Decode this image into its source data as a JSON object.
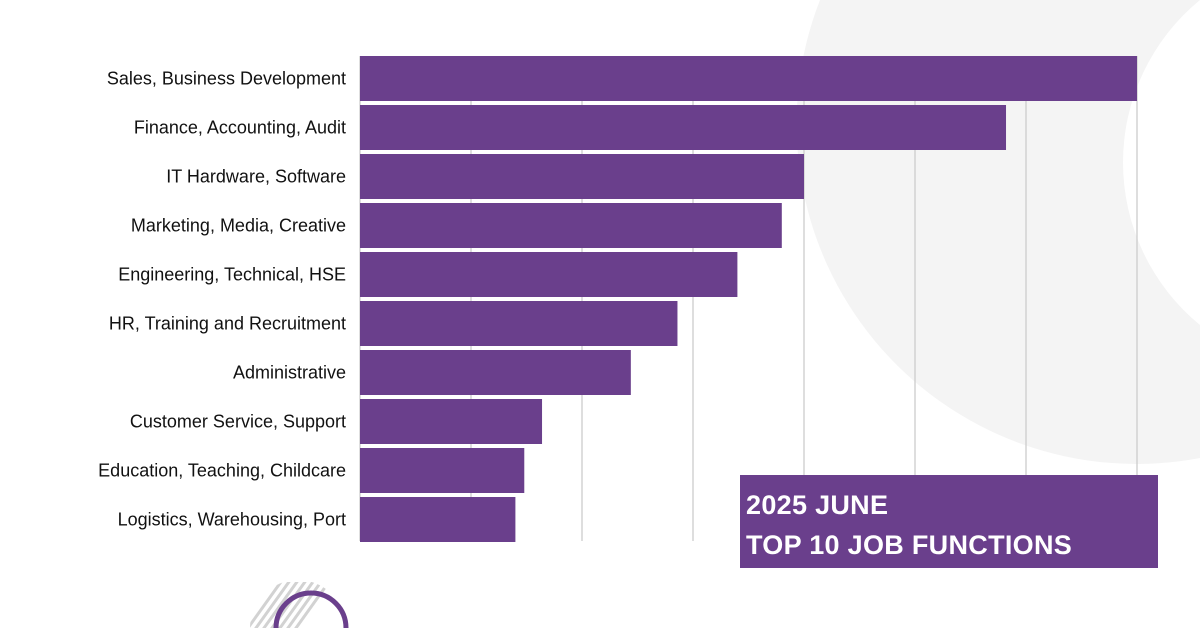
{
  "colors": {
    "bar": "#6a3f8c",
    "grid": "#c8c8c8",
    "title_bg": "#6a3f8c",
    "title_text": "#ffffff",
    "label_text": "#111111",
    "bg_shape": "#f4f4f4"
  },
  "title_lines": [
    "2025 JUNE",
    "TOP 10 JOB FUNCTIONS"
  ],
  "chart_data": {
    "type": "bar",
    "orientation": "horizontal",
    "categories": [
      "Sales, Business Development",
      "Finance, Accounting, Audit",
      "IT Hardware, Software",
      "Marketing, Media, Creative",
      "Engineering, Technical, HSE",
      "HR, Training and Recruitment",
      "Administrative",
      "Customer Service, Support",
      "Education, Teaching, Childcare",
      "Logistics, Warehousing, Port"
    ],
    "values": [
      7.0,
      5.82,
      4.0,
      3.8,
      3.4,
      2.86,
      2.44,
      1.64,
      1.48,
      1.4
    ],
    "xlim": [
      0,
      7
    ],
    "grid": true,
    "legend": "none",
    "xlabel": "",
    "ylabel": ""
  },
  "decor": {
    "background_shape": "large-light-gray-arc",
    "logo": "striped-circle-logo"
  }
}
